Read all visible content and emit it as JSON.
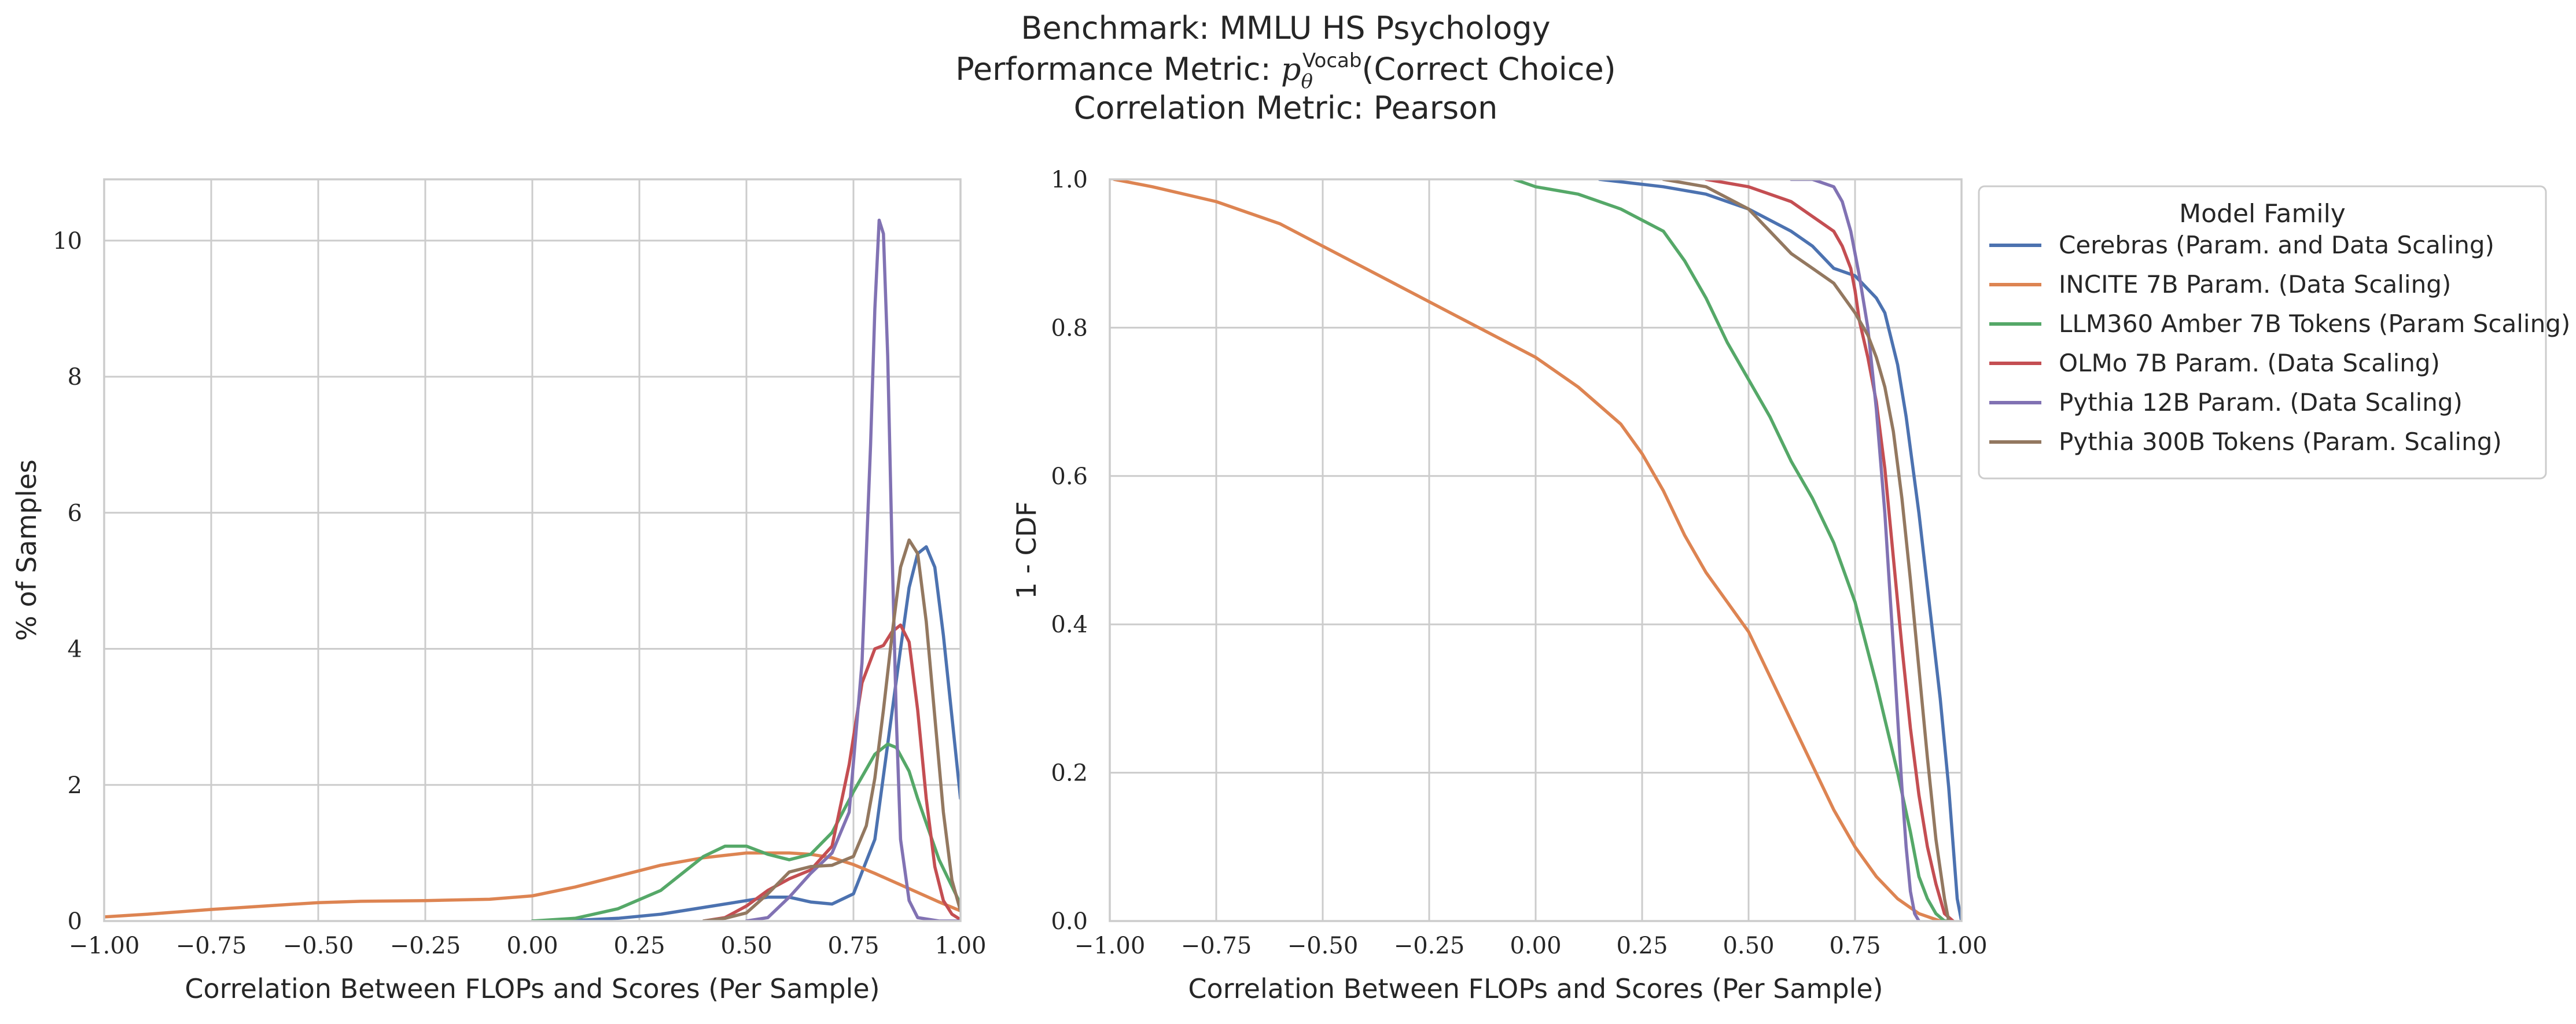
{
  "title_lines": [
    "Benchmark: MMLU HS Psychology",
    "Performance Metric: pθVocab(Correct Choice)",
    "Correlation Metric: Pearson"
  ],
  "title_parts": {
    "prefix": "Performance Metric: ",
    "symbol": "p",
    "subscript": "θ",
    "superscript": "Vocab",
    "suffix": "(Correct Choice)"
  },
  "legend": {
    "title": "Model Family",
    "position": "outside-right-top"
  },
  "series_meta": [
    {
      "name": "Cerebras (Param. and Data Scaling)",
      "color": "#4c72b0"
    },
    {
      "name": "INCITE 7B Param. (Data Scaling)",
      "color": "#dd8452"
    },
    {
      "name": "LLM360 Amber 7B Tokens (Param Scaling)",
      "color": "#55a868"
    },
    {
      "name": "OLMo 7B Param. (Data Scaling)",
      "color": "#c44e52"
    },
    {
      "name": "Pythia 12B Param. (Data Scaling)",
      "color": "#8172b3"
    },
    {
      "name": "Pythia 300B Tokens (Param. Scaling)",
      "color": "#937860"
    }
  ],
  "chart_data": [
    {
      "type": "line",
      "xlabel": "Correlation Between FLOPs and Scores (Per Sample)",
      "ylabel": "% of Samples",
      "xlim": [
        -1.0,
        1.0
      ],
      "ylim": [
        0,
        10.9
      ],
      "xticks": [
        "−1.00",
        "−0.75",
        "−0.50",
        "−0.25",
        "0.00",
        "0.25",
        "0.50",
        "0.75",
        "1.00"
      ],
      "xtick_values": [
        -1.0,
        -0.75,
        -0.5,
        -0.25,
        0.0,
        0.25,
        0.5,
        0.75,
        1.0
      ],
      "yticks": [
        "0",
        "2",
        "4",
        "6",
        "8",
        "10"
      ],
      "ytick_values": [
        0,
        2,
        4,
        6,
        8,
        10
      ],
      "grid": true,
      "series": [
        {
          "name": "Cerebras (Param. and Data Scaling)",
          "x": [
            0.0,
            0.1,
            0.2,
            0.3,
            0.4,
            0.5,
            0.55,
            0.6,
            0.65,
            0.7,
            0.75,
            0.8,
            0.83,
            0.86,
            0.88,
            0.9,
            0.92,
            0.94,
            0.96,
            0.98,
            1.0
          ],
          "y": [
            0.0,
            0.01,
            0.04,
            0.1,
            0.2,
            0.3,
            0.35,
            0.35,
            0.28,
            0.25,
            0.4,
            1.2,
            2.6,
            4.0,
            4.9,
            5.4,
            5.5,
            5.2,
            4.2,
            3.0,
            1.8
          ]
        },
        {
          "name": "INCITE 7B Param. (Data Scaling)",
          "x": [
            -1.0,
            -0.9,
            -0.75,
            -0.6,
            -0.5,
            -0.4,
            -0.25,
            -0.1,
            0.0,
            0.1,
            0.2,
            0.3,
            0.4,
            0.5,
            0.6,
            0.65,
            0.7,
            0.75,
            0.8,
            0.85,
            0.9,
            0.95,
            1.0
          ],
          "y": [
            0.06,
            0.1,
            0.17,
            0.23,
            0.27,
            0.29,
            0.3,
            0.32,
            0.37,
            0.5,
            0.66,
            0.82,
            0.93,
            1.0,
            1.0,
            0.98,
            0.93,
            0.83,
            0.7,
            0.56,
            0.42,
            0.28,
            0.15
          ]
        },
        {
          "name": "LLM360 Amber 7B Tokens (Param Scaling)",
          "x": [
            0.0,
            0.1,
            0.2,
            0.3,
            0.35,
            0.4,
            0.45,
            0.5,
            0.55,
            0.6,
            0.65,
            0.7,
            0.75,
            0.8,
            0.83,
            0.85,
            0.88,
            0.9,
            0.95,
            1.0
          ],
          "y": [
            0.0,
            0.04,
            0.18,
            0.45,
            0.7,
            0.95,
            1.1,
            1.1,
            0.98,
            0.9,
            0.98,
            1.3,
            1.9,
            2.45,
            2.6,
            2.55,
            2.2,
            1.8,
            0.9,
            0.25
          ]
        },
        {
          "name": "OLMo 7B Param. (Data Scaling)",
          "x": [
            0.4,
            0.45,
            0.5,
            0.55,
            0.6,
            0.65,
            0.7,
            0.74,
            0.77,
            0.8,
            0.82,
            0.84,
            0.86,
            0.88,
            0.9,
            0.92,
            0.94,
            0.96,
            0.98,
            1.0
          ],
          "y": [
            0.0,
            0.05,
            0.22,
            0.45,
            0.62,
            0.75,
            1.1,
            2.3,
            3.5,
            4.0,
            4.05,
            4.25,
            4.35,
            4.1,
            3.1,
            1.8,
            0.8,
            0.3,
            0.1,
            0.02
          ]
        },
        {
          "name": "Pythia 12B Param. (Data Scaling)",
          "x": [
            0.5,
            0.55,
            0.6,
            0.65,
            0.7,
            0.74,
            0.77,
            0.79,
            0.8,
            0.81,
            0.82,
            0.83,
            0.84,
            0.85,
            0.86,
            0.88,
            0.9,
            0.95,
            1.0
          ],
          "y": [
            0.0,
            0.05,
            0.35,
            0.7,
            1.0,
            1.6,
            3.8,
            7.0,
            9.0,
            10.3,
            10.1,
            8.3,
            5.5,
            3.0,
            1.2,
            0.3,
            0.05,
            0.0,
            0.0
          ]
        },
        {
          "name": "Pythia 300B Tokens (Param. Scaling)",
          "x": [
            0.4,
            0.45,
            0.5,
            0.55,
            0.6,
            0.65,
            0.7,
            0.75,
            0.78,
            0.8,
            0.82,
            0.84,
            0.86,
            0.88,
            0.9,
            0.92,
            0.94,
            0.96,
            0.98,
            1.0
          ],
          "y": [
            0.0,
            0.04,
            0.12,
            0.4,
            0.72,
            0.8,
            0.82,
            0.95,
            1.4,
            2.1,
            3.1,
            4.2,
            5.2,
            5.6,
            5.4,
            4.4,
            3.0,
            1.6,
            0.6,
            0.15
          ]
        }
      ]
    },
    {
      "type": "line",
      "xlabel": "Correlation Between FLOPs and Scores (Per Sample)",
      "ylabel": "1 - CDF",
      "xlim": [
        -1.0,
        1.0
      ],
      "ylim": [
        0.0,
        1.0
      ],
      "xticks": [
        "−1.00",
        "−0.75",
        "−0.50",
        "−0.25",
        "0.00",
        "0.25",
        "0.50",
        "0.75",
        "1.00"
      ],
      "xtick_values": [
        -1.0,
        -0.75,
        -0.5,
        -0.25,
        0.0,
        0.25,
        0.5,
        0.75,
        1.0
      ],
      "yticks": [
        "0.0",
        "0.2",
        "0.4",
        "0.6",
        "0.8",
        "1.0"
      ],
      "ytick_values": [
        0.0,
        0.2,
        0.4,
        0.6,
        0.8,
        1.0
      ],
      "grid": true,
      "series": [
        {
          "name": "Cerebras (Param. and Data Scaling)",
          "x": [
            0.15,
            0.3,
            0.4,
            0.5,
            0.6,
            0.65,
            0.7,
            0.75,
            0.8,
            0.82,
            0.85,
            0.87,
            0.9,
            0.92,
            0.95,
            0.97,
            0.99,
            1.0
          ],
          "y": [
            1.0,
            0.99,
            0.98,
            0.96,
            0.93,
            0.91,
            0.88,
            0.87,
            0.84,
            0.82,
            0.75,
            0.68,
            0.55,
            0.45,
            0.3,
            0.18,
            0.03,
            0.0
          ]
        },
        {
          "name": "INCITE 7B Param. (Data Scaling)",
          "x": [
            -0.99,
            -0.9,
            -0.75,
            -0.6,
            -0.5,
            -0.4,
            -0.3,
            -0.2,
            -0.1,
            0.0,
            0.1,
            0.2,
            0.25,
            0.3,
            0.35,
            0.4,
            0.45,
            0.5,
            0.55,
            0.6,
            0.65,
            0.7,
            0.75,
            0.8,
            0.85,
            0.9,
            0.95,
            0.98
          ],
          "y": [
            1.0,
            0.99,
            0.97,
            0.94,
            0.91,
            0.88,
            0.85,
            0.82,
            0.79,
            0.76,
            0.72,
            0.67,
            0.63,
            0.58,
            0.52,
            0.47,
            0.43,
            0.39,
            0.33,
            0.27,
            0.21,
            0.15,
            0.1,
            0.06,
            0.03,
            0.01,
            0.0,
            0.0
          ]
        },
        {
          "name": "LLM360 Amber 7B Tokens (Param Scaling)",
          "x": [
            -0.05,
            0.0,
            0.1,
            0.2,
            0.3,
            0.35,
            0.4,
            0.45,
            0.5,
            0.55,
            0.6,
            0.65,
            0.7,
            0.75,
            0.8,
            0.85,
            0.88,
            0.9,
            0.92,
            0.94,
            0.96,
            0.98
          ],
          "y": [
            1.0,
            0.99,
            0.98,
            0.96,
            0.93,
            0.89,
            0.84,
            0.78,
            0.73,
            0.68,
            0.62,
            0.57,
            0.51,
            0.43,
            0.32,
            0.2,
            0.12,
            0.06,
            0.03,
            0.01,
            0.0,
            0.0
          ]
        },
        {
          "name": "OLMo 7B Param. (Data Scaling)",
          "x": [
            0.4,
            0.5,
            0.6,
            0.65,
            0.7,
            0.72,
            0.74,
            0.75,
            0.76,
            0.78,
            0.8,
            0.82,
            0.84,
            0.86,
            0.88,
            0.9,
            0.92,
            0.94,
            0.96,
            0.98
          ],
          "y": [
            1.0,
            0.99,
            0.97,
            0.95,
            0.93,
            0.91,
            0.88,
            0.85,
            0.81,
            0.76,
            0.7,
            0.61,
            0.49,
            0.37,
            0.26,
            0.17,
            0.1,
            0.05,
            0.01,
            0.0
          ]
        },
        {
          "name": "Pythia 12B Param. (Data Scaling)",
          "x": [
            0.6,
            0.65,
            0.7,
            0.72,
            0.74,
            0.76,
            0.78,
            0.8,
            0.82,
            0.84,
            0.86,
            0.87,
            0.88,
            0.89,
            0.9
          ],
          "y": [
            1.0,
            1.0,
            0.99,
            0.97,
            0.93,
            0.87,
            0.8,
            0.69,
            0.55,
            0.37,
            0.18,
            0.1,
            0.04,
            0.01,
            0.0
          ]
        },
        {
          "name": "Pythia 300B Tokens (Param. Scaling)",
          "x": [
            0.3,
            0.4,
            0.5,
            0.55,
            0.6,
            0.65,
            0.7,
            0.75,
            0.78,
            0.8,
            0.82,
            0.84,
            0.86,
            0.88,
            0.9,
            0.92,
            0.94,
            0.96,
            0.97
          ],
          "y": [
            1.0,
            0.99,
            0.96,
            0.93,
            0.9,
            0.88,
            0.86,
            0.82,
            0.79,
            0.76,
            0.72,
            0.66,
            0.57,
            0.46,
            0.34,
            0.22,
            0.11,
            0.03,
            0.0
          ]
        }
      ]
    }
  ]
}
